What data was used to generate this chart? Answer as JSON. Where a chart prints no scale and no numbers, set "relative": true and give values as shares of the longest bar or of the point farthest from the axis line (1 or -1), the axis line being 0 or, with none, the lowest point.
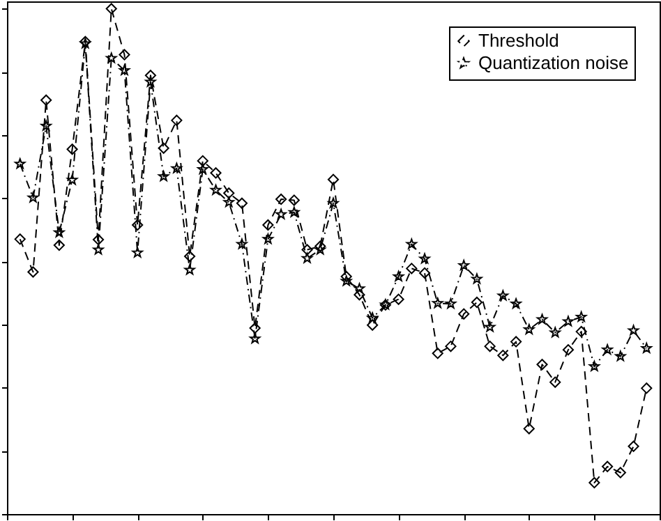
{
  "chart_data": {
    "type": "line",
    "relative": true,
    "grid": false,
    "legend": "top right",
    "categories": [
      null,
      null,
      null,
      null,
      null,
      null,
      null,
      null,
      null,
      null,
      null,
      null,
      null,
      null,
      null,
      null,
      null,
      null,
      null,
      null,
      null,
      null,
      null,
      null,
      null,
      null,
      null,
      null,
      null,
      null,
      null,
      null,
      null,
      null,
      null,
      null,
      null,
      null,
      null,
      null,
      null,
      null,
      null,
      null,
      null,
      null,
      null,
      null,
      null
    ],
    "series": [
      {
        "name": "Threshold",
        "color": "#000000",
        "marker": "diamond",
        "line_style": "dashed",
        "values": [
          0.544,
          0.479,
          0.819,
          0.532,
          0.722,
          0.935,
          0.543,
          1.0,
          0.909,
          0.572,
          0.868,
          0.724,
          0.779,
          0.51,
          0.699,
          0.675,
          0.635,
          0.615,
          0.368,
          0.572,
          0.623,
          0.621,
          0.523,
          0.53,
          0.662,
          0.47,
          0.434,
          0.374,
          0.414,
          0.425,
          0.486,
          0.477,
          0.318,
          0.332,
          0.396,
          0.419,
          0.332,
          0.314,
          0.341,
          0.169,
          0.296,
          0.261,
          0.325,
          0.361,
          0.062,
          0.094,
          0.082,
          0.134,
          0.249
        ]
      },
      {
        "name": "Quantization noise",
        "color": "#000000",
        "marker": "star",
        "line_style": "dashdot",
        "values": [
          0.693,
          0.626,
          0.768,
          0.557,
          0.661,
          0.931,
          0.523,
          0.902,
          0.878,
          0.517,
          0.855,
          0.668,
          0.684,
          0.483,
          0.682,
          0.641,
          0.617,
          0.534,
          0.347,
          0.544,
          0.593,
          0.597,
          0.506,
          0.523,
          0.615,
          0.461,
          0.446,
          0.388,
          0.414,
          0.47,
          0.534,
          0.505,
          0.417,
          0.416,
          0.492,
          0.465,
          0.37,
          0.432,
          0.416,
          0.365,
          0.385,
          0.359,
          0.381,
          0.39,
          0.292,
          0.325,
          0.312,
          0.363,
          0.328
        ]
      }
    ]
  }
}
